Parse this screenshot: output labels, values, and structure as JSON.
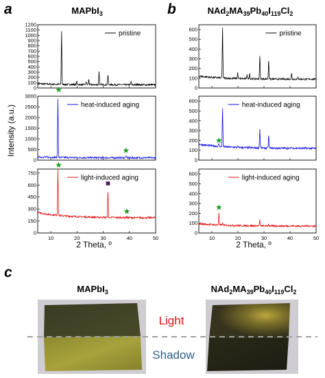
{
  "panel_labels": {
    "a": "a",
    "b": "b",
    "c": "c"
  },
  "titles": {
    "a": {
      "parts": [
        [
          "MAPbI",
          ""
        ],
        [
          "3",
          "sub"
        ]
      ]
    },
    "b": {
      "parts": [
        [
          "NAd",
          ""
        ],
        [
          "2",
          "sub"
        ],
        [
          "MA",
          ""
        ],
        [
          "39",
          "sub"
        ],
        [
          "Pb",
          ""
        ],
        [
          "40",
          "sub"
        ],
        [
          "I",
          ""
        ],
        [
          "119",
          "sub"
        ],
        [
          "Cl",
          ""
        ],
        [
          "2",
          "sub"
        ]
      ]
    }
  },
  "axis": {
    "xlabel": "2 Theta, º",
    "ylabel": "Intensity (a.u.)"
  },
  "photo": {
    "title_left": "MAPbI3",
    "title_right": "NAd2MA39Pb40I119Cl2",
    "light_label": "Light",
    "shadow_label": "Shadow",
    "light_color": "#e01010",
    "shadow_color": "#2a5e8a"
  },
  "colors": {
    "pristine": "#000000",
    "heat": "#1010e0",
    "light": "#e01010",
    "star": "#1aa01a",
    "square": "#4b1a5c"
  },
  "chart_data": [
    {
      "panel": "a",
      "type": "line",
      "title": "MAPbI3",
      "xlabel": "2 Theta, º",
      "ylabel": "Intensity (a.u.)",
      "xlim": [
        5,
        50
      ],
      "x_ticks": [
        10,
        20,
        30,
        40,
        50
      ],
      "subplots": [
        {
          "name": "pristine",
          "legend": "pristine",
          "color": "#000000",
          "ylim": [
            0,
            1200
          ],
          "y_ticks": [
            0,
            100,
            200,
            300,
            400,
            500,
            600,
            700,
            800,
            900,
            1000,
            1100,
            1200
          ],
          "baseline": 60,
          "peaks": [
            [
              14.1,
              1080
            ],
            [
              19.9,
              130
            ],
            [
              23.5,
              120
            ],
            [
              24.5,
              160
            ],
            [
              28.4,
              320
            ],
            [
              31.8,
              250
            ],
            [
              40.6,
              130
            ],
            [
              43.1,
              90
            ]
          ]
        },
        {
          "name": "heat-induced aging",
          "legend": "heat-induced aging",
          "color": "#1010e0",
          "ylim": [
            0,
            3000
          ],
          "y_ticks": [
            0,
            500,
            1000,
            1500,
            2000,
            2500,
            3000
          ],
          "baseline": 110,
          "peaks": [
            [
              12.7,
              2950
            ],
            [
              38.7,
              220
            ]
          ]
        },
        {
          "name": "light-induced aging",
          "legend": "light-induced aging",
          "color": "#e01010",
          "ylim": [
            0,
            800
          ],
          "y_ticks": [
            0,
            150,
            300,
            450,
            600,
            750
          ],
          "baseline": 190,
          "peaks": [
            [
              12.7,
              780
            ],
            [
              31.8,
              520
            ],
            [
              38.7,
              200
            ]
          ]
        }
      ],
      "markers": [
        {
          "subplot": 1,
          "shape": "star",
          "x": 13.0,
          "y": 3300
        },
        {
          "subplot": 1,
          "shape": "star",
          "x": 38.7,
          "y": 450
        },
        {
          "subplot": 2,
          "shape": "star",
          "x": 13.0,
          "y": 850
        },
        {
          "subplot": 2,
          "shape": "star",
          "x": 39.0,
          "y": 270
        },
        {
          "subplot": 2,
          "shape": "square",
          "x": 31.8,
          "y": 620
        }
      ]
    },
    {
      "panel": "b",
      "type": "line",
      "title": "NAd2MA39Pb40I119Cl2",
      "xlabel": "2 Theta, º",
      "xlim": [
        5,
        50
      ],
      "x_ticks": [
        10,
        20,
        30,
        40,
        50
      ],
      "subplots": [
        {
          "name": "pristine",
          "legend": "pristine",
          "color": "#000000",
          "ylim": [
            0,
            650
          ],
          "y_ticks": [
            0,
            100,
            200,
            300,
            400,
            500,
            600
          ],
          "baseline": 90,
          "peaks": [
            [
              14.1,
              610
            ],
            [
              19.9,
              150
            ],
            [
              23.5,
              140
            ],
            [
              24.5,
              150
            ],
            [
              28.4,
              330
            ],
            [
              31.8,
              290
            ],
            [
              40.6,
              150
            ],
            [
              43.1,
              110
            ]
          ]
        },
        {
          "name": "heat-induced aging",
          "legend": "heat-induced aging",
          "color": "#1010e0",
          "ylim": [
            0,
            650
          ],
          "y_ticks": [
            0,
            100,
            200,
            300,
            400,
            500,
            600
          ],
          "baseline": 120,
          "peaks": [
            [
              12.7,
              150
            ],
            [
              14.1,
              520
            ],
            [
              19.9,
              130
            ],
            [
              24.5,
              130
            ],
            [
              28.4,
              310
            ],
            [
              31.8,
              250
            ],
            [
              40.6,
              130
            ]
          ]
        },
        {
          "name": "light-induced aging",
          "legend": "light-induced aging",
          "color": "#e01010",
          "ylim": [
            0,
            650
          ],
          "y_ticks": [
            0,
            100,
            200,
            300,
            400,
            500,
            600
          ],
          "baseline": 70,
          "peaks": [
            [
              12.7,
              200
            ],
            [
              14.1,
              90
            ],
            [
              28.4,
              130
            ],
            [
              31.8,
              90
            ]
          ]
        }
      ],
      "markers": [
        {
          "subplot": 1,
          "shape": "star",
          "x": 12.7,
          "y": 200
        },
        {
          "subplot": 2,
          "shape": "star",
          "x": 12.7,
          "y": 260
        }
      ]
    }
  ]
}
